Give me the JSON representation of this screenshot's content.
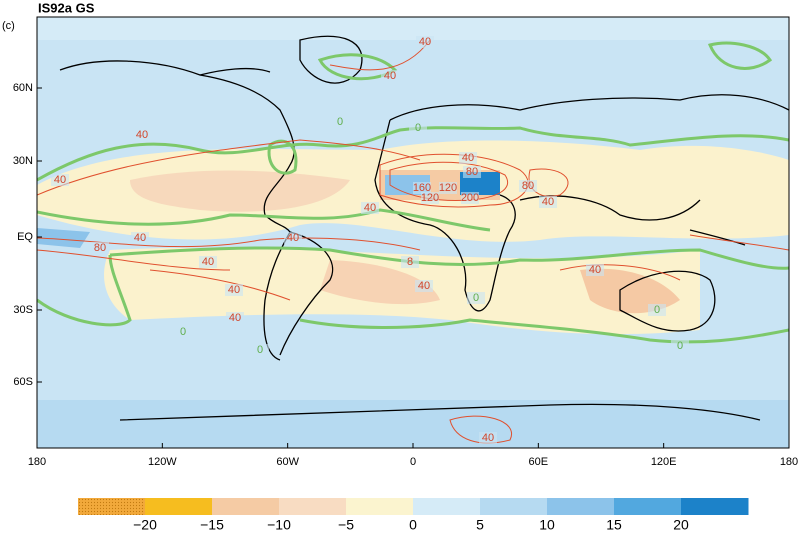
{
  "header": {
    "title": "IS92a GS",
    "panel": "(c)"
  },
  "map": {
    "lat_labels": [
      "60N",
      "30N",
      "EQ",
      "30S",
      "60S"
    ],
    "lon_labels": [
      "180",
      "120W",
      "60W",
      "0",
      "60E",
      "120E",
      "180"
    ],
    "contour_labels": [
      "40",
      "40",
      "40",
      "40",
      "80",
      "40",
      "40",
      "40",
      "40",
      "8",
      "40",
      "40",
      "40",
      "40",
      "160",
      "120",
      "120",
      "200",
      "80",
      "80",
      "40",
      "40",
      "0",
      "0",
      "0",
      "0",
      "0",
      "0",
      "0",
      "40"
    ]
  },
  "colorbar": {
    "labels": [
      "−20",
      "−15",
      "−10",
      "−5",
      "0",
      "5",
      "10",
      "15",
      "20"
    ],
    "colors": [
      "#f2a93b",
      "#f6bd1f",
      "#f5cba4",
      "#f8dcc2",
      "#fbf4cf",
      "#d5ebf7",
      "#b6daf1",
      "#8cc3ea",
      "#52a8df",
      "#1c82c9"
    ]
  }
}
